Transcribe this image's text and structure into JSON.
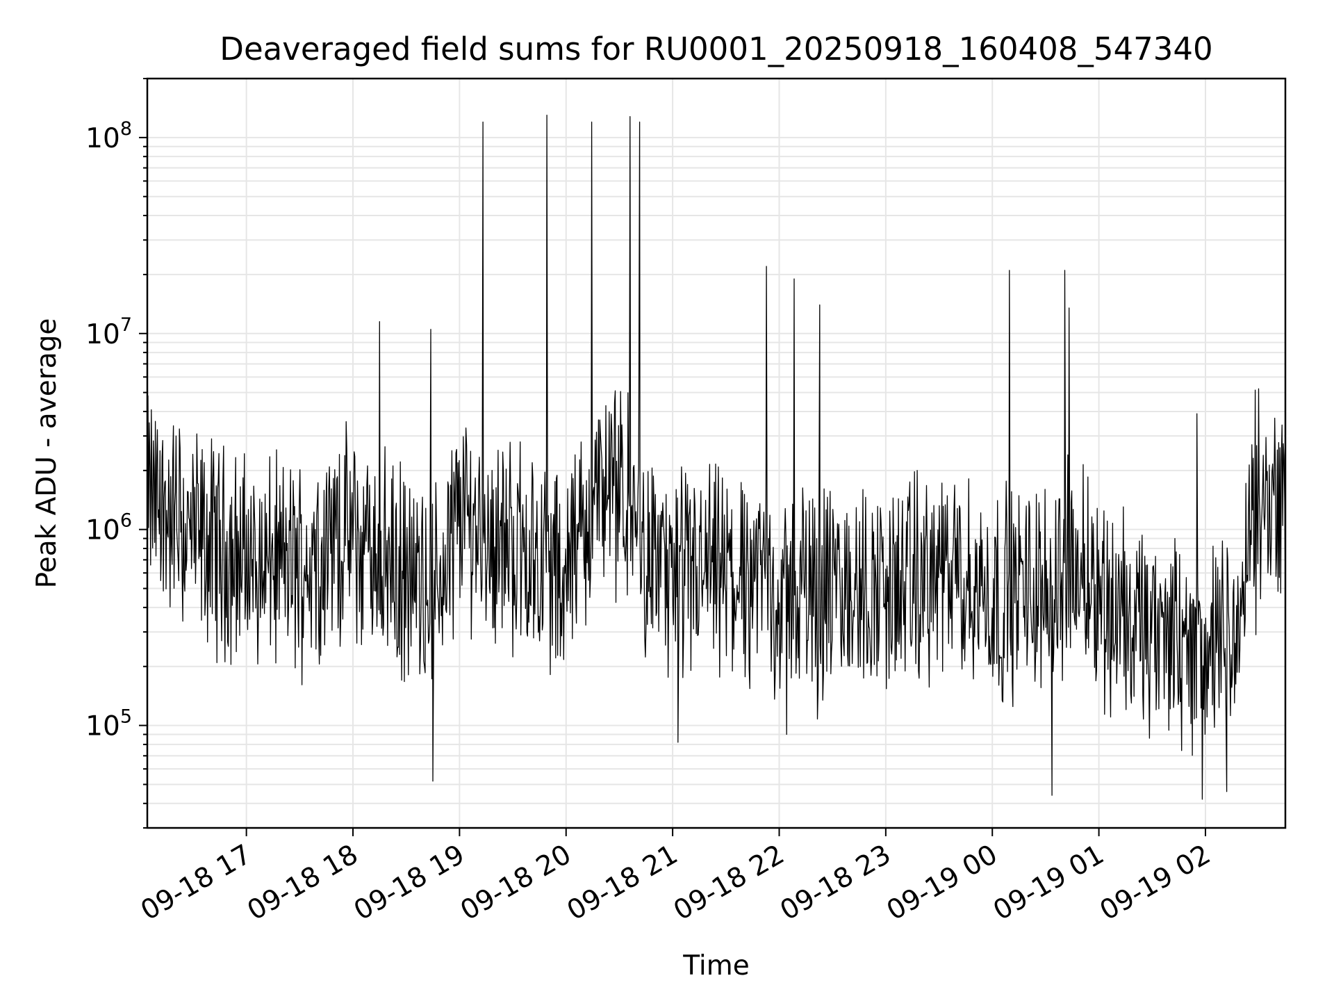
{
  "chart_data": {
    "type": "line",
    "title": "Deaveraged field sums for RU0001_20250918_160408_547340",
    "xlabel": "Time",
    "ylabel": "Peak ADU - average",
    "yscale": "log",
    "grid": true,
    "xlim_hours": [
      16.07,
      26.75
    ],
    "ylim": [
      30000,
      200000000
    ],
    "x_ticks": [
      {
        "hour": 17,
        "label": "09-18 17"
      },
      {
        "hour": 18,
        "label": "09-18 18"
      },
      {
        "hour": 19,
        "label": "09-18 19"
      },
      {
        "hour": 20,
        "label": "09-18 20"
      },
      {
        "hour": 21,
        "label": "09-18 21"
      },
      {
        "hour": 22,
        "label": "09-18 22"
      },
      {
        "hour": 23,
        "label": "09-18 23"
      },
      {
        "hour": 24,
        "label": "09-19 00"
      },
      {
        "hour": 25,
        "label": "09-19 01"
      },
      {
        "hour": 26,
        "label": "09-19 02"
      }
    ],
    "y_ticks": [
      {
        "value": 100000,
        "base": "10",
        "exp": "5"
      },
      {
        "value": 1000000,
        "base": "10",
        "exp": "6"
      },
      {
        "value": 10000000,
        "base": "10",
        "exp": "7"
      },
      {
        "value": 100000000,
        "base": "10",
        "exp": "8"
      }
    ],
    "series": [
      {
        "color": "#000000",
        "baseline": [
          [
            16.07,
            1500000
          ],
          [
            16.5,
            900000
          ],
          [
            17.0,
            700000
          ],
          [
            17.5,
            650000
          ],
          [
            17.9,
            950000
          ],
          [
            18.3,
            700000
          ],
          [
            18.6,
            500000
          ],
          [
            18.8,
            550000
          ],
          [
            19.0,
            1300000
          ],
          [
            19.3,
            900000
          ],
          [
            19.6,
            800000
          ],
          [
            19.9,
            600000
          ],
          [
            20.1,
            800000
          ],
          [
            20.3,
            1600000
          ],
          [
            20.6,
            1400000
          ],
          [
            20.75,
            800000
          ],
          [
            21.0,
            550000
          ],
          [
            21.3,
            600000
          ],
          [
            21.6,
            550000
          ],
          [
            21.9,
            600000
          ],
          [
            22.0,
            400000
          ],
          [
            22.3,
            550000
          ],
          [
            22.6,
            450000
          ],
          [
            22.9,
            500000
          ],
          [
            23.2,
            500000
          ],
          [
            23.5,
            600000
          ],
          [
            23.8,
            500000
          ],
          [
            24.1,
            450000
          ],
          [
            24.5,
            550000
          ],
          [
            24.9,
            650000
          ],
          [
            25.1,
            400000
          ],
          [
            25.4,
            300000
          ],
          [
            25.7,
            250000
          ],
          [
            26.0,
            230000
          ],
          [
            26.35,
            300000
          ],
          [
            26.42,
            1300000
          ],
          [
            26.6,
            1500000
          ],
          [
            26.75,
            1100000
          ]
        ],
        "spikes": [
          [
            18.25,
            11500000
          ],
          [
            18.73,
            10500000
          ],
          [
            19.22,
            120000000
          ],
          [
            19.82,
            130000000
          ],
          [
            20.24,
            120000000
          ],
          [
            20.6,
            128000000
          ],
          [
            20.69,
            120000000
          ],
          [
            21.88,
            22000000
          ],
          [
            22.14,
            19000000
          ],
          [
            22.38,
            14000000
          ],
          [
            24.16,
            21000000
          ],
          [
            24.68,
            21000000
          ],
          [
            24.72,
            13500000
          ],
          [
            25.92,
            3900000
          ],
          [
            26.65,
            3700000
          ],
          [
            18.75,
            52000
          ],
          [
            24.56,
            44000
          ],
          [
            25.97,
            42000
          ],
          [
            21.05,
            82000
          ],
          [
            22.07,
            90000
          ],
          [
            26.2,
            46000
          ]
        ]
      }
    ]
  }
}
